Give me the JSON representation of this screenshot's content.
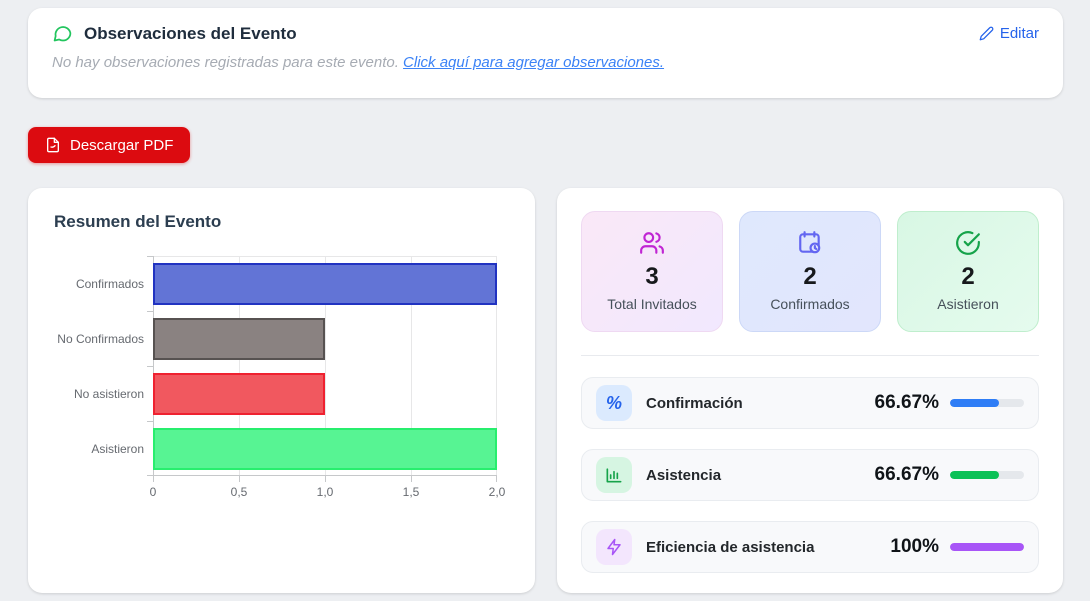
{
  "observations": {
    "title": "Observaciones del Evento",
    "edit_label": "Editar",
    "empty_text": "No hay observaciones registradas para este evento.",
    "link_text": "Click aquí para agregar observaciones."
  },
  "download": {
    "label": "Descargar PDF"
  },
  "summary": {
    "title": "Resumen del Evento"
  },
  "chart_data": {
    "type": "bar",
    "orientation": "horizontal",
    "title": "Resumen del Evento",
    "categories": [
      "Confirmados",
      "No Confirmados",
      "No asistieron",
      "Asistieron"
    ],
    "values": [
      2,
      1,
      1,
      2
    ],
    "xlim": [
      0,
      2
    ],
    "xtick_labels": [
      "0",
      "0,5",
      "1,0",
      "1,5",
      "2,0"
    ],
    "bar_fill_colors": [
      "#6274d6",
      "#8a8281",
      "#f1585f",
      "#57f493"
    ],
    "bar_border_colors": [
      "#2133c1",
      "#575251",
      "#ef2130",
      "#28ee6e"
    ],
    "grid": true,
    "legend": false,
    "xlabel": "",
    "ylabel": ""
  },
  "stats": {
    "cards": [
      {
        "icon": "users-icon",
        "value": "3",
        "label": "Total Invitados",
        "accent": "#c026d3"
      },
      {
        "icon": "calendar-clock-icon",
        "value": "2",
        "label": "Confirmados",
        "accent": "#6366f1"
      },
      {
        "icon": "check-circle-icon",
        "value": "2",
        "label": "Asistieron",
        "accent": "#16a34a"
      }
    ],
    "metrics": [
      {
        "icon": "percent-icon",
        "label": "Confirmación",
        "value": "66.67%",
        "percent": 66.67,
        "bar_color": "#2e7df6"
      },
      {
        "icon": "bar-chart-icon",
        "label": "Asistencia",
        "value": "66.67%",
        "percent": 66.67,
        "bar_color": "#0cc157"
      },
      {
        "icon": "bolt-icon",
        "label": "Eficiencia de asistencia",
        "value": "100%",
        "percent": 100,
        "bar_color": "#a855f7"
      }
    ]
  }
}
